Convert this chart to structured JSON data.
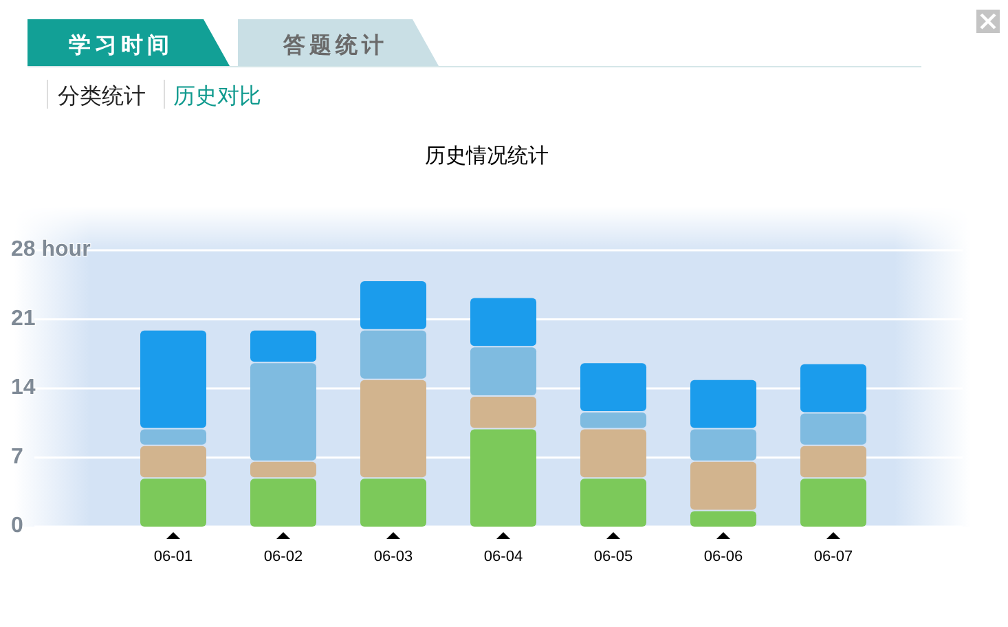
{
  "chart_data": {
    "type": "bar",
    "stacked": true,
    "title": "历史情况统计",
    "categories": [
      "06-01",
      "06-02",
      "06-03",
      "06-04",
      "06-05",
      "06-06",
      "06-07"
    ],
    "series": [
      {
        "color": "#7cc95a",
        "values": [
          5,
          5,
          5,
          10,
          5,
          1.7,
          5
        ]
      },
      {
        "color": "#d2b48e",
        "values": [
          3.3,
          1.7,
          10,
          3.3,
          5,
          5,
          3.3
        ]
      },
      {
        "color": "#7fbbe0",
        "values": [
          1.7,
          10,
          5,
          5,
          1.7,
          3.3,
          3.3
        ]
      },
      {
        "color": "#1b9cec",
        "values": [
          10,
          3.3,
          5,
          5,
          5,
          5,
          5
        ]
      }
    ],
    "ylim": [
      0,
      28
    ],
    "yticks": [
      0,
      7,
      14,
      21,
      {
        "value": 28,
        "label": "28 hour"
      }
    ],
    "grid": "y",
    "annotations": [
      "学习时间",
      "答题统计",
      "分类统计",
      "历史对比"
    ]
  }
}
